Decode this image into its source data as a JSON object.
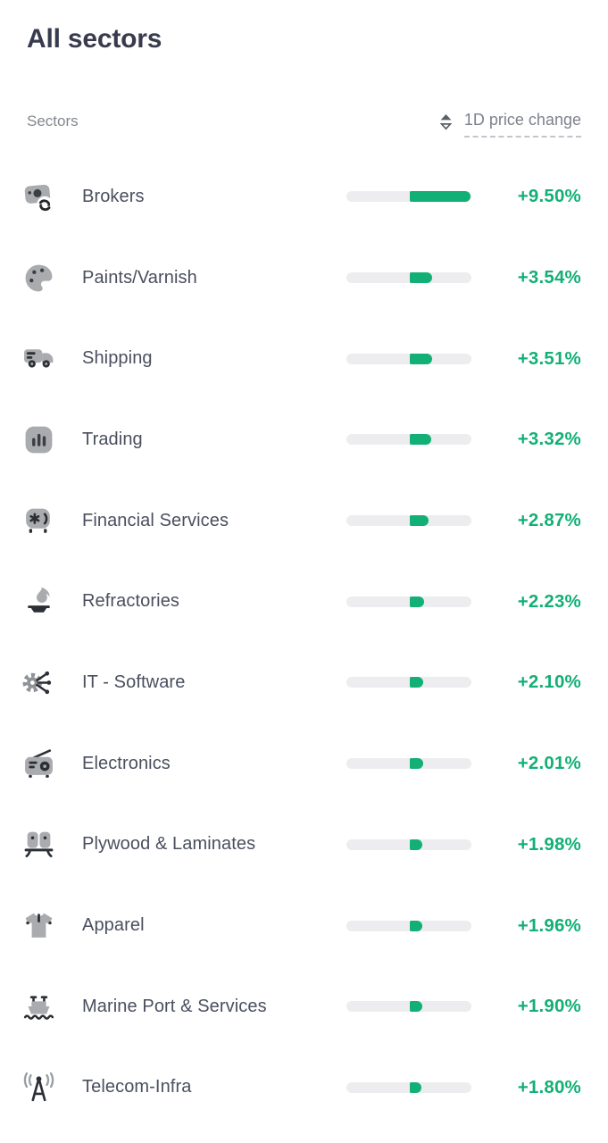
{
  "page": {
    "title": "All sectors"
  },
  "table": {
    "column_header_left": "Sectors",
    "column_header_right": "1D price change",
    "sort_icon": "sort-arrows-icon",
    "sort_direction_visual": "descending"
  },
  "colors": {
    "positive_green": "#12b076",
    "bar_track": "#ededef",
    "title_text": "#373b4d",
    "row_text": "#4a4f5e",
    "header_text": "#83878f"
  },
  "bar": {
    "max_pct": 9.5,
    "fill_origin": "center"
  },
  "sectors": [
    {
      "name": "Brokers",
      "icon": "currency-exchange-icon",
      "change_label": "+9.50%",
      "change_pct": 9.5
    },
    {
      "name": "Paints/Varnish",
      "icon": "palette-icon",
      "change_label": "+3.54%",
      "change_pct": 3.54
    },
    {
      "name": "Shipping",
      "icon": "delivery-truck-icon",
      "change_label": "+3.51%",
      "change_pct": 3.51
    },
    {
      "name": "Trading",
      "icon": "bar-chart-icon",
      "change_label": "+3.32%",
      "change_pct": 3.32
    },
    {
      "name": "Financial Services",
      "icon": "slot-machine-icon",
      "change_label": "+2.87%",
      "change_pct": 2.87
    },
    {
      "name": "Refractories",
      "icon": "flame-crucible-icon",
      "change_label": "+2.23%",
      "change_pct": 2.23
    },
    {
      "name": "IT - Software",
      "icon": "gear-network-icon",
      "change_label": "+2.10%",
      "change_pct": 2.1
    },
    {
      "name": "Electronics",
      "icon": "radio-icon",
      "change_label": "+2.01%",
      "change_pct": 2.01
    },
    {
      "name": "Plywood & Laminates",
      "icon": "furniture-icon",
      "change_label": "+1.98%",
      "change_pct": 1.98
    },
    {
      "name": "Apparel",
      "icon": "tshirt-icon",
      "change_label": "+1.96%",
      "change_pct": 1.96
    },
    {
      "name": "Marine Port & Services",
      "icon": "ship-icon",
      "change_label": "+1.90%",
      "change_pct": 1.9
    },
    {
      "name": "Telecom-Infra",
      "icon": "antenna-icon",
      "change_label": "+1.80%",
      "change_pct": 1.8
    }
  ],
  "chart_data": {
    "type": "bar",
    "title": "All sectors",
    "xlabel": "1D price change (%)",
    "ylabel": "Sector",
    "categories": [
      "Brokers",
      "Paints/Varnish",
      "Shipping",
      "Trading",
      "Financial Services",
      "Refractories",
      "IT - Software",
      "Electronics",
      "Plywood & Laminates",
      "Apparel",
      "Marine Port & Services",
      "Telecom-Infra"
    ],
    "values": [
      9.5,
      3.54,
      3.51,
      3.32,
      2.87,
      2.23,
      2.1,
      2.01,
      1.98,
      1.96,
      1.9,
      1.8
    ],
    "value_labels": [
      "+9.50%",
      "+3.54%",
      "+3.51%",
      "+3.32%",
      "+2.87%",
      "+2.23%",
      "+2.10%",
      "+2.01%",
      "+1.98%",
      "+1.96%",
      "+1.90%",
      "+1.80%"
    ],
    "xlim": [
      0,
      9.5
    ],
    "orientation": "horizontal",
    "grid": false,
    "legend": false
  }
}
